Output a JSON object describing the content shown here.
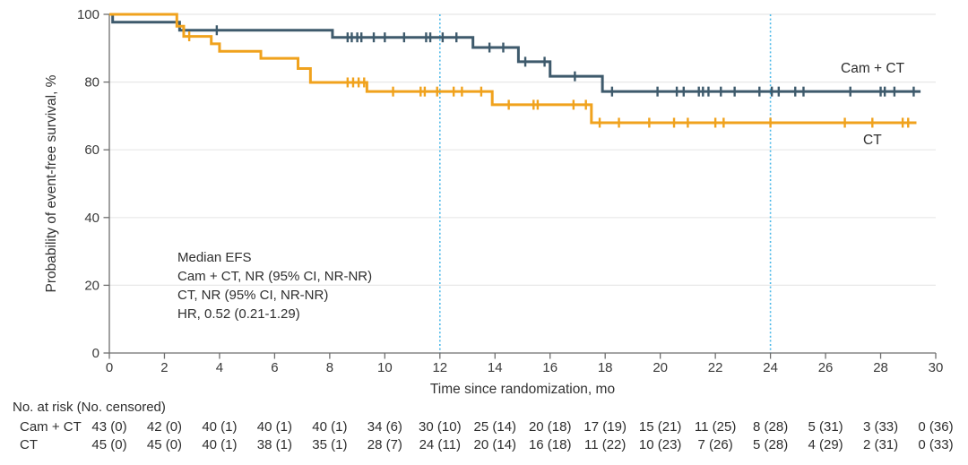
{
  "figure": {
    "legend": {
      "camct": "Cam + CT",
      "ct": "CT"
    },
    "annotation": {
      "lines": [
        "Median EFS",
        "Cam + CT, NR (95% CI, NR-NR)",
        "CT, NR (95% CI, NR-NR)",
        "HR, 0.52 (0.21-1.29)"
      ]
    }
  },
  "chart_data": {
    "type": "line",
    "subtype": "kaplan-meier-step",
    "title": "",
    "xlabel": "Time since randomization, mo",
    "ylabel": "Probability of event-free survival, %",
    "xlim": [
      0,
      30
    ],
    "ylim": [
      0,
      100
    ],
    "xticks": [
      0,
      2,
      4,
      6,
      8,
      10,
      12,
      14,
      16,
      18,
      20,
      22,
      24,
      26,
      28,
      30
    ],
    "yticks": [
      0,
      20,
      40,
      60,
      80,
      100
    ],
    "grid": "horizontal",
    "legend_position": "end-of-line",
    "reference_lines_x": [
      12,
      24
    ],
    "colors": {
      "camct": "#3e5a6c",
      "ct": "#f0a21d",
      "reference": "#4db9e8",
      "grid": "#e8e8e8",
      "axis": "#6e6e6e",
      "text": "#333333"
    },
    "series": [
      {
        "name": "Cam + CT",
        "color_key": "camct",
        "steps": [
          [
            0,
            100
          ],
          [
            0.12,
            97.7
          ],
          [
            2.55,
            95.3
          ],
          [
            8.1,
            93.2
          ],
          [
            13.2,
            90.2
          ],
          [
            14.85,
            86.0
          ],
          [
            16.0,
            81.7
          ],
          [
            17.9,
            77.2
          ]
        ],
        "end_t": 29.45,
        "censor_marks": [
          [
            3.9,
            95.3
          ],
          [
            8.65,
            93.2
          ],
          [
            8.8,
            93.2
          ],
          [
            9.0,
            93.2
          ],
          [
            9.15,
            93.2
          ],
          [
            9.6,
            93.2
          ],
          [
            10.0,
            93.2
          ],
          [
            10.7,
            93.2
          ],
          [
            11.5,
            93.2
          ],
          [
            11.65,
            93.2
          ],
          [
            12.1,
            93.2
          ],
          [
            12.6,
            93.2
          ],
          [
            13.8,
            90.2
          ],
          [
            14.3,
            90.2
          ],
          [
            15.1,
            86.0
          ],
          [
            15.8,
            86.0
          ],
          [
            16.9,
            81.7
          ],
          [
            18.25,
            77.2
          ],
          [
            19.9,
            77.2
          ],
          [
            20.6,
            77.2
          ],
          [
            20.85,
            77.2
          ],
          [
            21.4,
            77.2
          ],
          [
            21.55,
            77.2
          ],
          [
            21.75,
            77.2
          ],
          [
            22.2,
            77.2
          ],
          [
            22.7,
            77.2
          ],
          [
            23.6,
            77.2
          ],
          [
            24.05,
            77.2
          ],
          [
            24.3,
            77.2
          ],
          [
            24.9,
            77.2
          ],
          [
            25.2,
            77.2
          ],
          [
            26.9,
            77.2
          ],
          [
            28.0,
            77.2
          ],
          [
            28.15,
            77.2
          ],
          [
            28.5,
            77.2
          ],
          [
            29.2,
            77.2
          ]
        ]
      },
      {
        "name": "CT",
        "color_key": "ct",
        "steps": [
          [
            0,
            100
          ],
          [
            2.45,
            96.5
          ],
          [
            2.7,
            93.5
          ],
          [
            3.7,
            91.3
          ],
          [
            4.0,
            89.1
          ],
          [
            5.5,
            87.0
          ],
          [
            6.85,
            84.0
          ],
          [
            7.3,
            79.9
          ],
          [
            9.35,
            77.2
          ],
          [
            13.9,
            73.3
          ],
          [
            17.5,
            68.0
          ]
        ],
        "end_t": 29.3,
        "censor_marks": [
          [
            2.9,
            93.5
          ],
          [
            8.65,
            79.9
          ],
          [
            8.85,
            79.9
          ],
          [
            9.05,
            79.9
          ],
          [
            9.25,
            79.9
          ],
          [
            10.3,
            77.2
          ],
          [
            11.3,
            77.2
          ],
          [
            11.45,
            77.2
          ],
          [
            11.9,
            77.2
          ],
          [
            12.5,
            77.2
          ],
          [
            12.8,
            77.2
          ],
          [
            13.5,
            77.2
          ],
          [
            14.5,
            73.3
          ],
          [
            15.4,
            73.3
          ],
          [
            15.55,
            73.3
          ],
          [
            16.85,
            73.3
          ],
          [
            17.3,
            73.3
          ],
          [
            17.8,
            68.0
          ],
          [
            18.5,
            68.0
          ],
          [
            19.6,
            68.0
          ],
          [
            20.5,
            68.0
          ],
          [
            21.0,
            68.0
          ],
          [
            22.0,
            68.0
          ],
          [
            22.3,
            68.0
          ],
          [
            24.0,
            68.0
          ],
          [
            26.7,
            68.0
          ],
          [
            27.7,
            68.0
          ],
          [
            28.8,
            68.0
          ],
          [
            29.0,
            68.0
          ]
        ]
      }
    ]
  },
  "risk_table": {
    "title": "No. at risk (No. censored)",
    "time_points": [
      0,
      2,
      4,
      6,
      8,
      10,
      12,
      14,
      16,
      18,
      20,
      22,
      24,
      26,
      28,
      30
    ],
    "rows": [
      {
        "label": "Cam + CT",
        "values": [
          "43 (0)",
          "42 (0)",
          "40 (1)",
          "40 (1)",
          "40 (1)",
          "34 (6)",
          "30 (10)",
          "25 (14)",
          "20 (18)",
          "17 (19)",
          "15 (21)",
          "11 (25)",
          "8 (28)",
          "5 (31)",
          "3 (33)",
          "0 (36)"
        ]
      },
      {
        "label": "CT",
        "values": [
          "45 (0)",
          "45 (0)",
          "40 (1)",
          "38 (1)",
          "35 (1)",
          "28 (7)",
          "24 (11)",
          "20 (14)",
          "16 (18)",
          "11 (22)",
          "10 (23)",
          "7 (26)",
          "5 (28)",
          "4 (29)",
          "2 (31)",
          "0 (33)"
        ]
      }
    ]
  }
}
